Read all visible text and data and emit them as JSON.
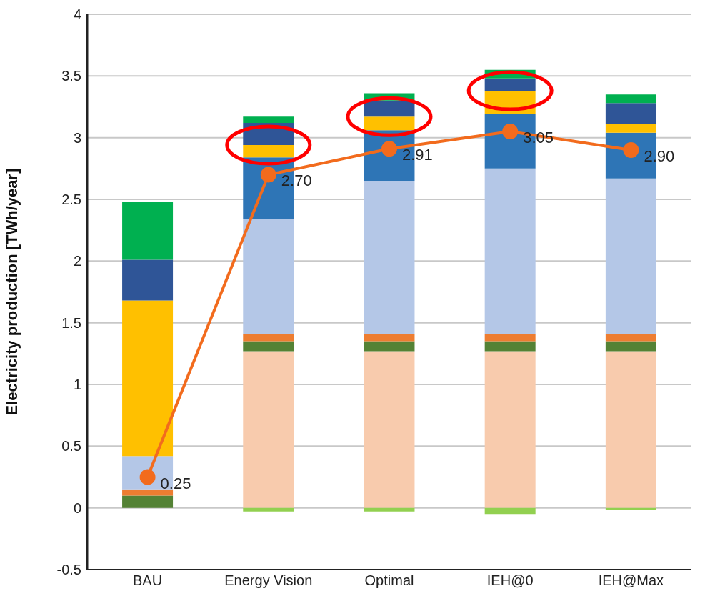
{
  "chart_data": {
    "type": "bar",
    "stacked": true,
    "ylabel": "Electricity production [TWh/year]",
    "categories": [
      "BAU",
      "Energy Vision",
      "Optimal",
      "IEH@0",
      "IEH@Max"
    ],
    "ylim": [
      -0.5,
      4
    ],
    "yticks": [
      -0.5,
      0,
      0.5,
      1,
      1.5,
      2,
      2.5,
      3,
      3.5,
      4
    ],
    "grid": "y",
    "series": [
      {
        "color": "#f8cbad",
        "values": [
          0,
          1.27,
          1.27,
          1.27,
          1.27
        ]
      },
      {
        "color": "#548235",
        "values": [
          0.1,
          0.08,
          0.08,
          0.08,
          0.08
        ]
      },
      {
        "color": "#ed7d31",
        "values": [
          0.05,
          0.06,
          0.06,
          0.06,
          0.06
        ]
      },
      {
        "color": "#b4c7e7",
        "values": [
          0.27,
          0.93,
          1.24,
          1.34,
          1.26
        ]
      },
      {
        "color": "#2e75b6",
        "values": [
          0,
          0.5,
          0.41,
          0.44,
          0.37
        ]
      },
      {
        "color": "#ffc000",
        "values": [
          1.26,
          0.1,
          0.11,
          0.19,
          0.07
        ]
      },
      {
        "color": "#2f5597",
        "values": [
          0.33,
          0.18,
          0.13,
          0.1,
          0.17
        ]
      },
      {
        "color": "#00b050",
        "values": [
          0.47,
          0.05,
          0.06,
          0.07,
          0.07
        ]
      },
      {
        "color": "#92d050",
        "values": [
          0,
          -0.03,
          -0.03,
          -0.05,
          -0.02
        ]
      },
      {
        "type": "line",
        "color": "#f26b1d",
        "marker": "circle",
        "values": [
          0.25,
          2.7,
          2.91,
          3.05,
          2.9
        ],
        "value_labels": [
          "0.25",
          "2.70",
          "2.91",
          "3.05",
          "2.90"
        ]
      }
    ]
  }
}
